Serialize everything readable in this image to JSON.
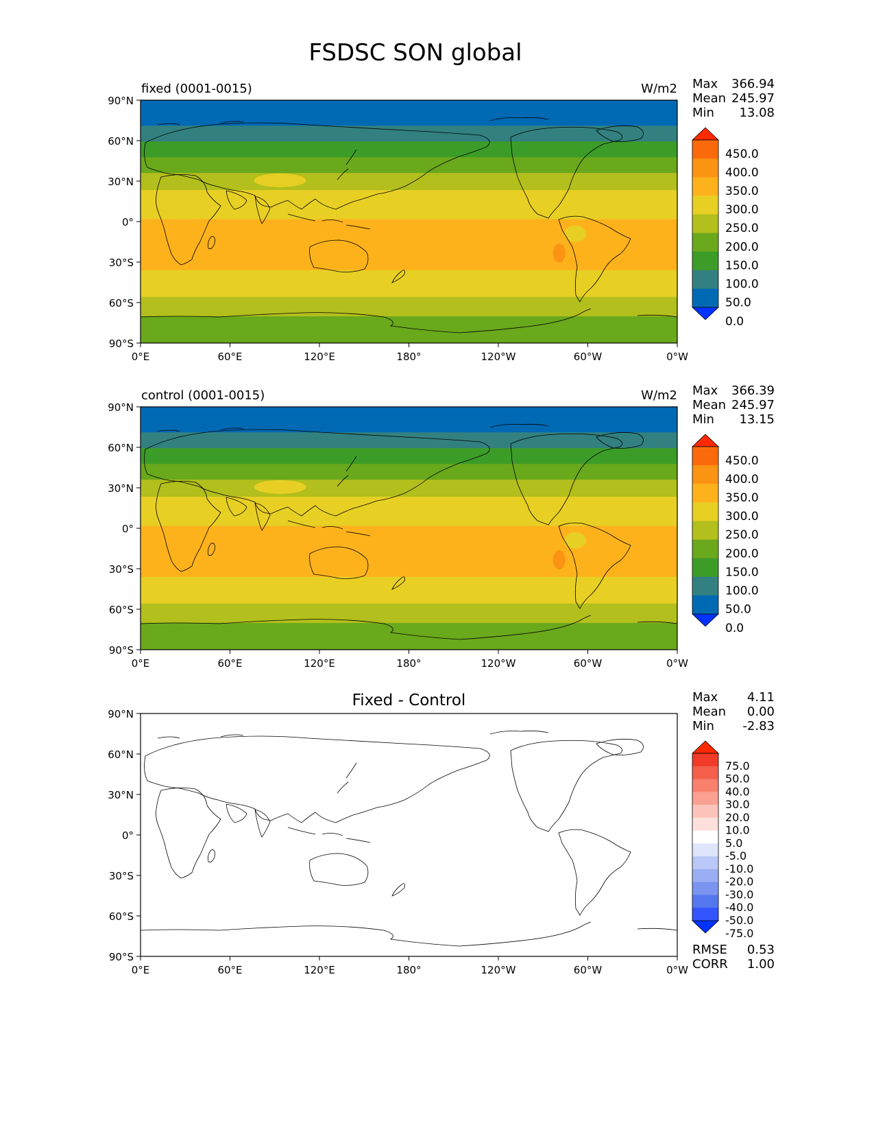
{
  "title": "FSDSC SON global",
  "lon_ticks": [
    "0°E",
    "60°E",
    "120°E",
    "180°",
    "120°W",
    "60°W",
    "0°W"
  ],
  "lat_ticks": [
    "90°N",
    "60°N",
    "30°N",
    "0°",
    "30°S",
    "60°S",
    "90°S"
  ],
  "colors": {
    "abs_bands": [
      "#0033ff",
      "#0069b4",
      "#338080",
      "#3c9c28",
      "#6aa81c",
      "#b2bf1c",
      "#e8cf24",
      "#fdb21c",
      "#fb9313",
      "#fa6a0b",
      "#ff2a00"
    ],
    "diff_bands": [
      "#0033ff",
      "#3355ff",
      "#5577ee",
      "#7a95f0",
      "#9aaef3",
      "#bac8f7",
      "#dfe5fb",
      "#ffffff",
      "#fde0dc",
      "#fcc3bb",
      "#fba192",
      "#f8806d",
      "#f45f4c",
      "#ef3b28",
      "#ff2a00"
    ]
  },
  "panels": [
    {
      "label": "fixed (0001-0015)",
      "units": "W/m2",
      "stats": [
        {
          "label": "Max",
          "value": "366.94"
        },
        {
          "label": "Mean",
          "value": "245.97"
        },
        {
          "label": "Min",
          "value": "13.08"
        }
      ],
      "colorbar_labels": [
        "0.0",
        "50.0",
        "100.0",
        "150.0",
        "200.0",
        "250.0",
        "300.0",
        "350.0",
        "400.0",
        "450.0"
      ]
    },
    {
      "label": "control (0001-0015)",
      "units": "W/m2",
      "stats": [
        {
          "label": "Max",
          "value": "366.39"
        },
        {
          "label": "Mean",
          "value": "245.97"
        },
        {
          "label": "Min",
          "value": "13.15"
        }
      ],
      "colorbar_labels": [
        "0.0",
        "50.0",
        "100.0",
        "150.0",
        "200.0",
        "250.0",
        "300.0",
        "350.0",
        "400.0",
        "450.0"
      ]
    },
    {
      "title": "Fixed - Control",
      "stats": [
        {
          "label": "Max",
          "value": "4.11"
        },
        {
          "label": "Mean",
          "value": "0.00"
        },
        {
          "label": "Min",
          "value": "-2.83"
        }
      ],
      "colorbar_labels": [
        "-75.0",
        "-50.0",
        "-40.0",
        "-30.0",
        "-20.0",
        "-10.0",
        "-5.0",
        "5.0",
        "10.0",
        "20.0",
        "30.0",
        "40.0",
        "50.0",
        "75.0"
      ],
      "metrics": [
        {
          "label": "RMSE",
          "value": "0.53"
        },
        {
          "label": "CORR",
          "value": "1.00"
        }
      ]
    }
  ]
}
